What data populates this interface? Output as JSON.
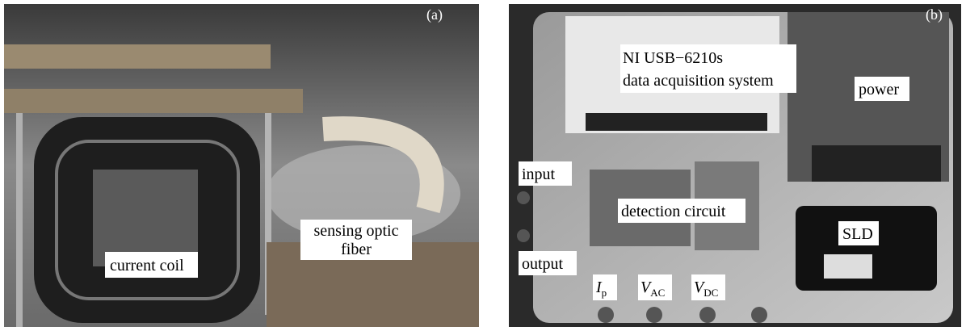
{
  "panels": [
    {
      "tag": "(a)",
      "labels": [
        {
          "lines": [
            "current coil"
          ]
        },
        {
          "lines": [
            "sensing optic",
            "fiber"
          ]
        }
      ]
    },
    {
      "tag": "(b)",
      "labels": [
        {
          "lines": [
            "NI USB−6210s",
            "data acquisition system"
          ]
        },
        {
          "lines": [
            "power"
          ]
        },
        {
          "lines": [
            "input"
          ]
        },
        {
          "lines": [
            "detection circuit"
          ]
        },
        {
          "lines": [
            "output"
          ]
        },
        {
          "lines": [
            "SLD"
          ]
        },
        {
          "main": "I",
          "sub": "p"
        },
        {
          "main": "V",
          "sub": "AC"
        },
        {
          "main": "V",
          "sub": "DC"
        }
      ]
    }
  ]
}
